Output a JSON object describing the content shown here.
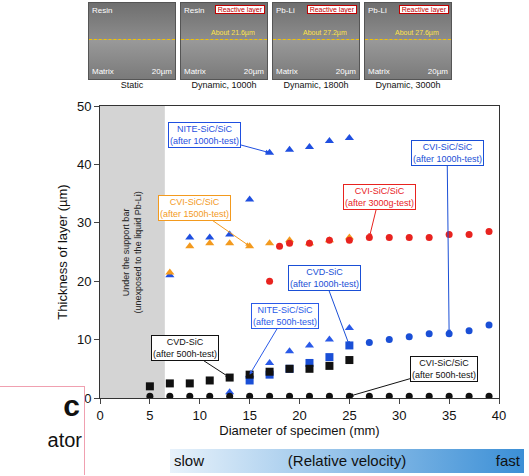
{
  "images": [
    {
      "caption": "Static",
      "upper": "Resin",
      "lower": "Matrix",
      "scale": "20µm"
    },
    {
      "caption": "Dynamic, 1000h",
      "upper": "Resin",
      "layer": "Reactive layer",
      "thickness": "About 21.6µm",
      "lower": "Matrix",
      "scale": "20µm"
    },
    {
      "caption": "Dynamic, 1800h",
      "upper": "Pb-Li",
      "layer": "Reactive layer",
      "thickness": "About 27.2µm",
      "lower": "Matrix",
      "scale": "20µm"
    },
    {
      "caption": "Dynamic, 3000h",
      "upper": "Pb-Li",
      "layer": "Reactive layer",
      "thickness": "About 27.6µm",
      "lower": "Matrix",
      "scale": "20µm"
    }
  ],
  "chart_data": {
    "type": "scatter",
    "x_label": "Diameter of specimen (mm)",
    "y_label": "Thickness of layer (µm)",
    "xlim": [
      0,
      40
    ],
    "xticks": [
      0,
      5,
      10,
      15,
      20,
      25,
      30,
      35,
      40
    ],
    "ylim": [
      0,
      50
    ],
    "yticks": [
      0,
      10,
      20,
      30,
      40,
      50
    ],
    "grid": false,
    "shaded": {
      "xlim": [
        0,
        6.5
      ],
      "text": "Under the support bar (unexposed to the liquid Pb-Li)"
    },
    "series": [
      {
        "name": "NITE-SiC/SiC (after 1000h-test)",
        "color": "#1f4fe0",
        "marker": "triangle-up",
        "x": [
          7,
          9,
          11,
          13,
          15,
          17,
          19,
          21,
          23,
          25
        ],
        "values": [
          21,
          27.5,
          27.5,
          28,
          34,
          42,
          42.5,
          43,
          44,
          44.5
        ]
      },
      {
        "name": "CVI-SiC/SiC (after 1500h-test)",
        "color": "#f39a1e",
        "marker": "triangle-up",
        "x": [
          7,
          9,
          11,
          13,
          15,
          17,
          19,
          21,
          23,
          25
        ],
        "values": [
          21.5,
          26,
          26.5,
          26.5,
          26,
          26.5,
          27,
          26.5,
          27,
          27.5
        ]
      },
      {
        "name": "CVI-SiC/SiC (after 3000g-test)",
        "color": "#e8231f",
        "marker": "circle",
        "x": [
          17,
          18,
          19,
          21,
          23,
          25,
          27,
          29,
          31,
          33,
          35,
          37,
          39
        ],
        "values": [
          20,
          26,
          26.5,
          26.5,
          27,
          27,
          27.5,
          27.5,
          27.5,
          27.5,
          28,
          28,
          28.5
        ]
      },
      {
        "name": "CVI-SiC/SiC (after 1000h-test)",
        "color": "#1a4fd6",
        "marker": "circle",
        "x": [
          27,
          29,
          31,
          33,
          35,
          37,
          39
        ],
        "values": [
          9.5,
          10,
          10.5,
          11,
          11,
          11.5,
          12.5
        ]
      },
      {
        "name": "CVD-SiC (after 1000h-test)",
        "color": "#1a4fd6",
        "marker": "square",
        "x": [
          15,
          17,
          19,
          21,
          23,
          25
        ],
        "values": [
          3,
          4,
          5,
          6,
          7,
          9
        ]
      },
      {
        "name": "NITE-SiC/SiC (after 500h-test)",
        "color": "#2a5ae8",
        "marker": "triangle-up",
        "x": [
          13,
          15,
          17,
          19,
          21,
          23,
          25
        ],
        "values": [
          1,
          4,
          6,
          8,
          9,
          10,
          12
        ]
      },
      {
        "name": "CVD-SiC (after 500h-test)",
        "color": "#111111",
        "marker": "square",
        "x": [
          5,
          7,
          9,
          11,
          13,
          15,
          17,
          19,
          21,
          23,
          25
        ],
        "values": [
          2,
          2.5,
          2.5,
          3,
          3.5,
          4,
          4.5,
          5,
          5,
          5.5,
          6.5
        ]
      },
      {
        "name": "CVI-SiC/SiC (after 500h-test)",
        "color": "#111111",
        "marker": "circle",
        "x": [
          5,
          7,
          9,
          11,
          13,
          15,
          17,
          19,
          21,
          23,
          25,
          27,
          29,
          31,
          33,
          35,
          37,
          39
        ],
        "values": [
          0.3,
          0.3,
          0.3,
          0.3,
          0.3,
          0.3,
          0.3,
          0.3,
          0.3,
          0.3,
          0.3,
          0.3,
          0.3,
          0.3,
          0.3,
          0.3,
          0.3,
          0.3
        ]
      }
    ]
  },
  "fragments": {
    "big": "c",
    "small": "ator"
  },
  "velocity": {
    "left": "slow",
    "middle": "(Relative velocity)",
    "right": "fast"
  }
}
